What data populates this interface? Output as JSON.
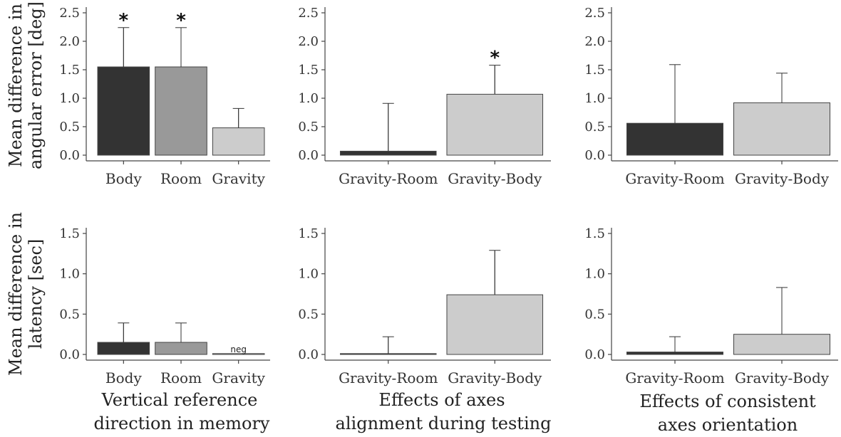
{
  "figure": {
    "row_labels": {
      "top": [
        "Mean difference in",
        "angular error [deg]"
      ],
      "bottom": [
        "Mean difference in",
        "latency [sec]"
      ]
    },
    "column_titles": [
      [
        "Vertical reference",
        "direction in memory"
      ],
      [
        "Effects of axes",
        "alignment during testing"
      ],
      [
        "Effects of consistent",
        "axes orientation"
      ]
    ],
    "colors": {
      "dark": "#333333",
      "mid": "#999999",
      "light": "#cccccc",
      "bar_edge": "#444444",
      "axis": "#444444"
    }
  },
  "chart_data": [
    {
      "type": "bar",
      "panel": "top-left",
      "categories": [
        "Body",
        "Room",
        "Gravity"
      ],
      "values": [
        1.55,
        1.55,
        0.48
      ],
      "error_upper": [
        2.24,
        2.24,
        0.82
      ],
      "significance": [
        "*",
        "*",
        ""
      ],
      "colors": [
        "dark",
        "mid",
        "light"
      ],
      "ylim": [
        0,
        2.5
      ],
      "yticks": [
        "0.0",
        "0.5",
        "1.0",
        "1.5",
        "2.0",
        "2.5"
      ]
    },
    {
      "type": "bar",
      "panel": "top-middle",
      "categories": [
        "Gravity-Room",
        "Gravity-Body"
      ],
      "values": [
        0.07,
        1.07
      ],
      "error_upper": [
        0.91,
        1.58
      ],
      "significance": [
        "",
        "*"
      ],
      "colors": [
        "dark",
        "light"
      ],
      "ylim": [
        0,
        2.5
      ],
      "yticks": [
        "0.0",
        "0.5",
        "1.0",
        "1.5",
        "2.0",
        "2.5"
      ]
    },
    {
      "type": "bar",
      "panel": "top-right",
      "categories": [
        "Gravity-Room",
        "Gravity-Body"
      ],
      "values": [
        0.56,
        0.92
      ],
      "error_upper": [
        1.59,
        1.44
      ],
      "significance": [
        "",
        ""
      ],
      "colors": [
        "dark",
        "light"
      ],
      "ylim": [
        0,
        2.5
      ],
      "yticks": [
        "0.0",
        "0.5",
        "1.0",
        "1.5",
        "2.0",
        "2.5"
      ]
    },
    {
      "type": "bar",
      "panel": "bottom-left",
      "categories": [
        "Body",
        "Room",
        "Gravity"
      ],
      "values": [
        0.15,
        0.15,
        0.0
      ],
      "error_upper": [
        0.39,
        0.39,
        null
      ],
      "bar_annotations": [
        "",
        "",
        "neg"
      ],
      "colors": [
        "dark",
        "mid",
        "light"
      ],
      "ylim": [
        0,
        1.5
      ],
      "yticks": [
        "0.0",
        "0.5",
        "1.0",
        "1.5"
      ]
    },
    {
      "type": "bar",
      "panel": "bottom-middle",
      "categories": [
        "Gravity-Room",
        "Gravity-Body"
      ],
      "values": [
        0.01,
        0.74
      ],
      "error_upper": [
        0.22,
        1.29
      ],
      "colors": [
        "dark",
        "light"
      ],
      "ylim": [
        0,
        1.5
      ],
      "yticks": [
        "0.0",
        "0.5",
        "1.0",
        "1.5"
      ]
    },
    {
      "type": "bar",
      "panel": "bottom-right",
      "categories": [
        "Gravity-Room",
        "Gravity-Body"
      ],
      "values": [
        0.03,
        0.25
      ],
      "error_upper": [
        0.22,
        0.83
      ],
      "colors": [
        "dark",
        "light"
      ],
      "ylim": [
        0,
        1.5
      ],
      "yticks": [
        "0.0",
        "0.5",
        "1.0",
        "1.5"
      ]
    }
  ]
}
